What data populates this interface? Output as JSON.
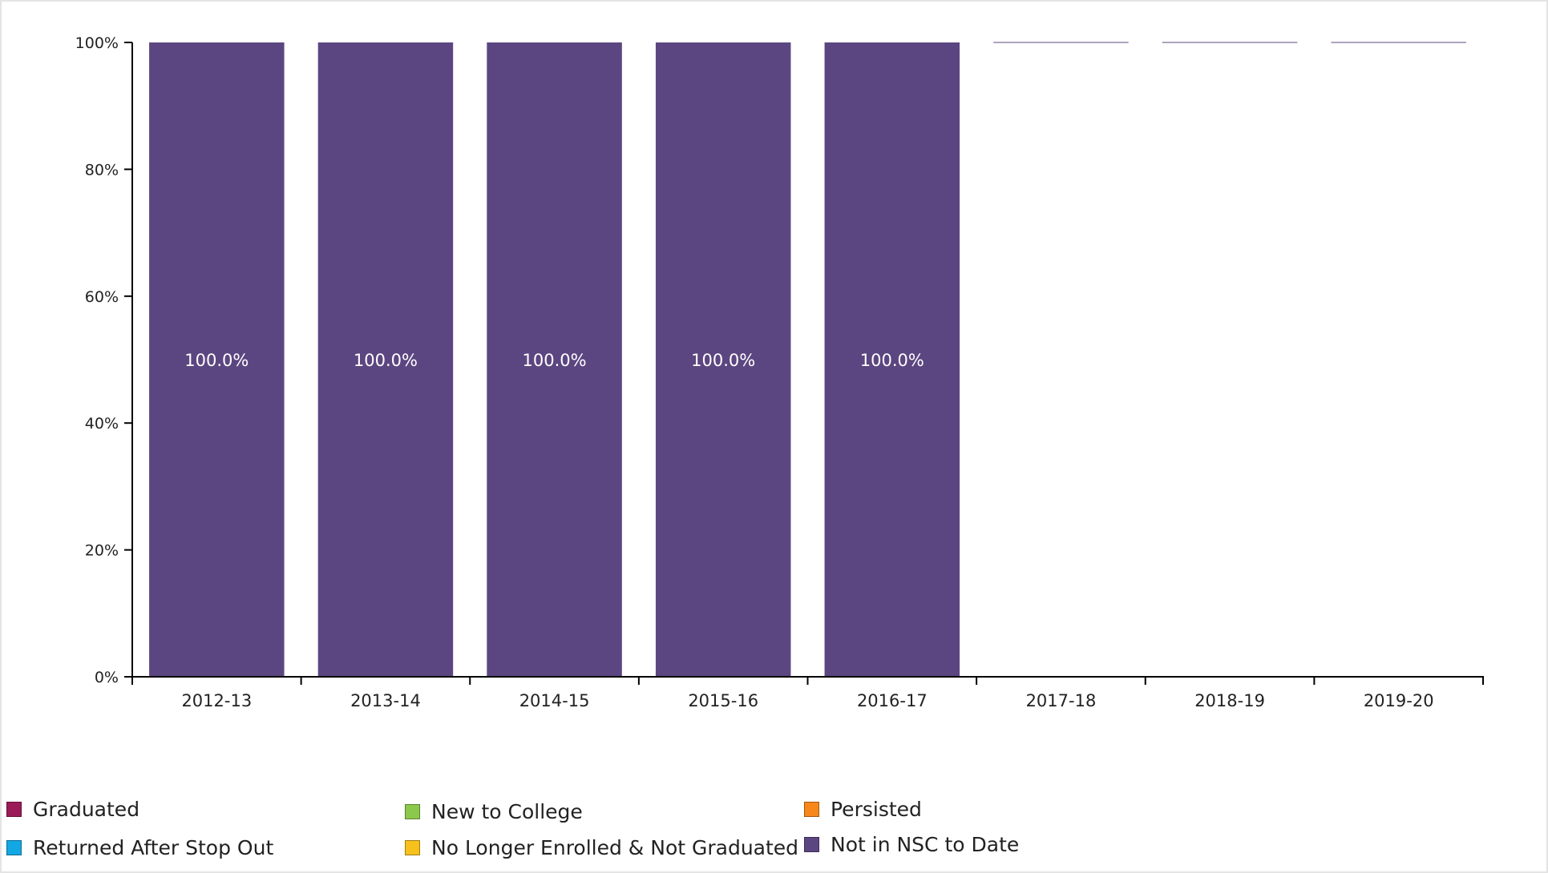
{
  "chart_data": {
    "type": "bar",
    "stacked": true,
    "categories": [
      "2012-13",
      "2013-14",
      "2014-15",
      "2015-16",
      "2016-17",
      "2017-18",
      "2018-19",
      "2019-20"
    ],
    "ylim": [
      0,
      100
    ],
    "y_ticks": [
      0,
      20,
      40,
      60,
      80,
      100
    ],
    "y_tick_labels": [
      "0%",
      "20%",
      "40%",
      "60%",
      "80%",
      "100%"
    ],
    "title": "",
    "xlabel": "",
    "ylabel": "",
    "grid": false,
    "legend_placement": "bottom",
    "series": [
      {
        "name": "Graduated",
        "color": "#9b1a58",
        "values": [
          0,
          0,
          0,
          0,
          0,
          null,
          null,
          null
        ]
      },
      {
        "name": "Returned After Stop Out",
        "color": "#13a8e3",
        "values": [
          0,
          0,
          0,
          0,
          0,
          null,
          null,
          null
        ]
      },
      {
        "name": "New to College",
        "color": "#8cc84b",
        "values": [
          0,
          0,
          0,
          0,
          0,
          null,
          null,
          null
        ]
      },
      {
        "name": "No Longer Enrolled & Not Graduated",
        "color": "#f7c11c",
        "values": [
          0,
          0,
          0,
          0,
          0,
          null,
          null,
          null
        ]
      },
      {
        "name": "Persisted",
        "color": "#f7861b",
        "values": [
          0,
          0,
          0,
          0,
          0,
          null,
          null,
          null
        ]
      },
      {
        "name": "Not in NSC to Date",
        "color": "#5c4681",
        "values": [
          100,
          100,
          100,
          100,
          100,
          null,
          null,
          null
        ]
      }
    ],
    "data_labels": [
      "100.0%",
      "100.0%",
      "100.0%",
      "100.0%",
      "100.0%",
      "",
      "",
      ""
    ]
  }
}
